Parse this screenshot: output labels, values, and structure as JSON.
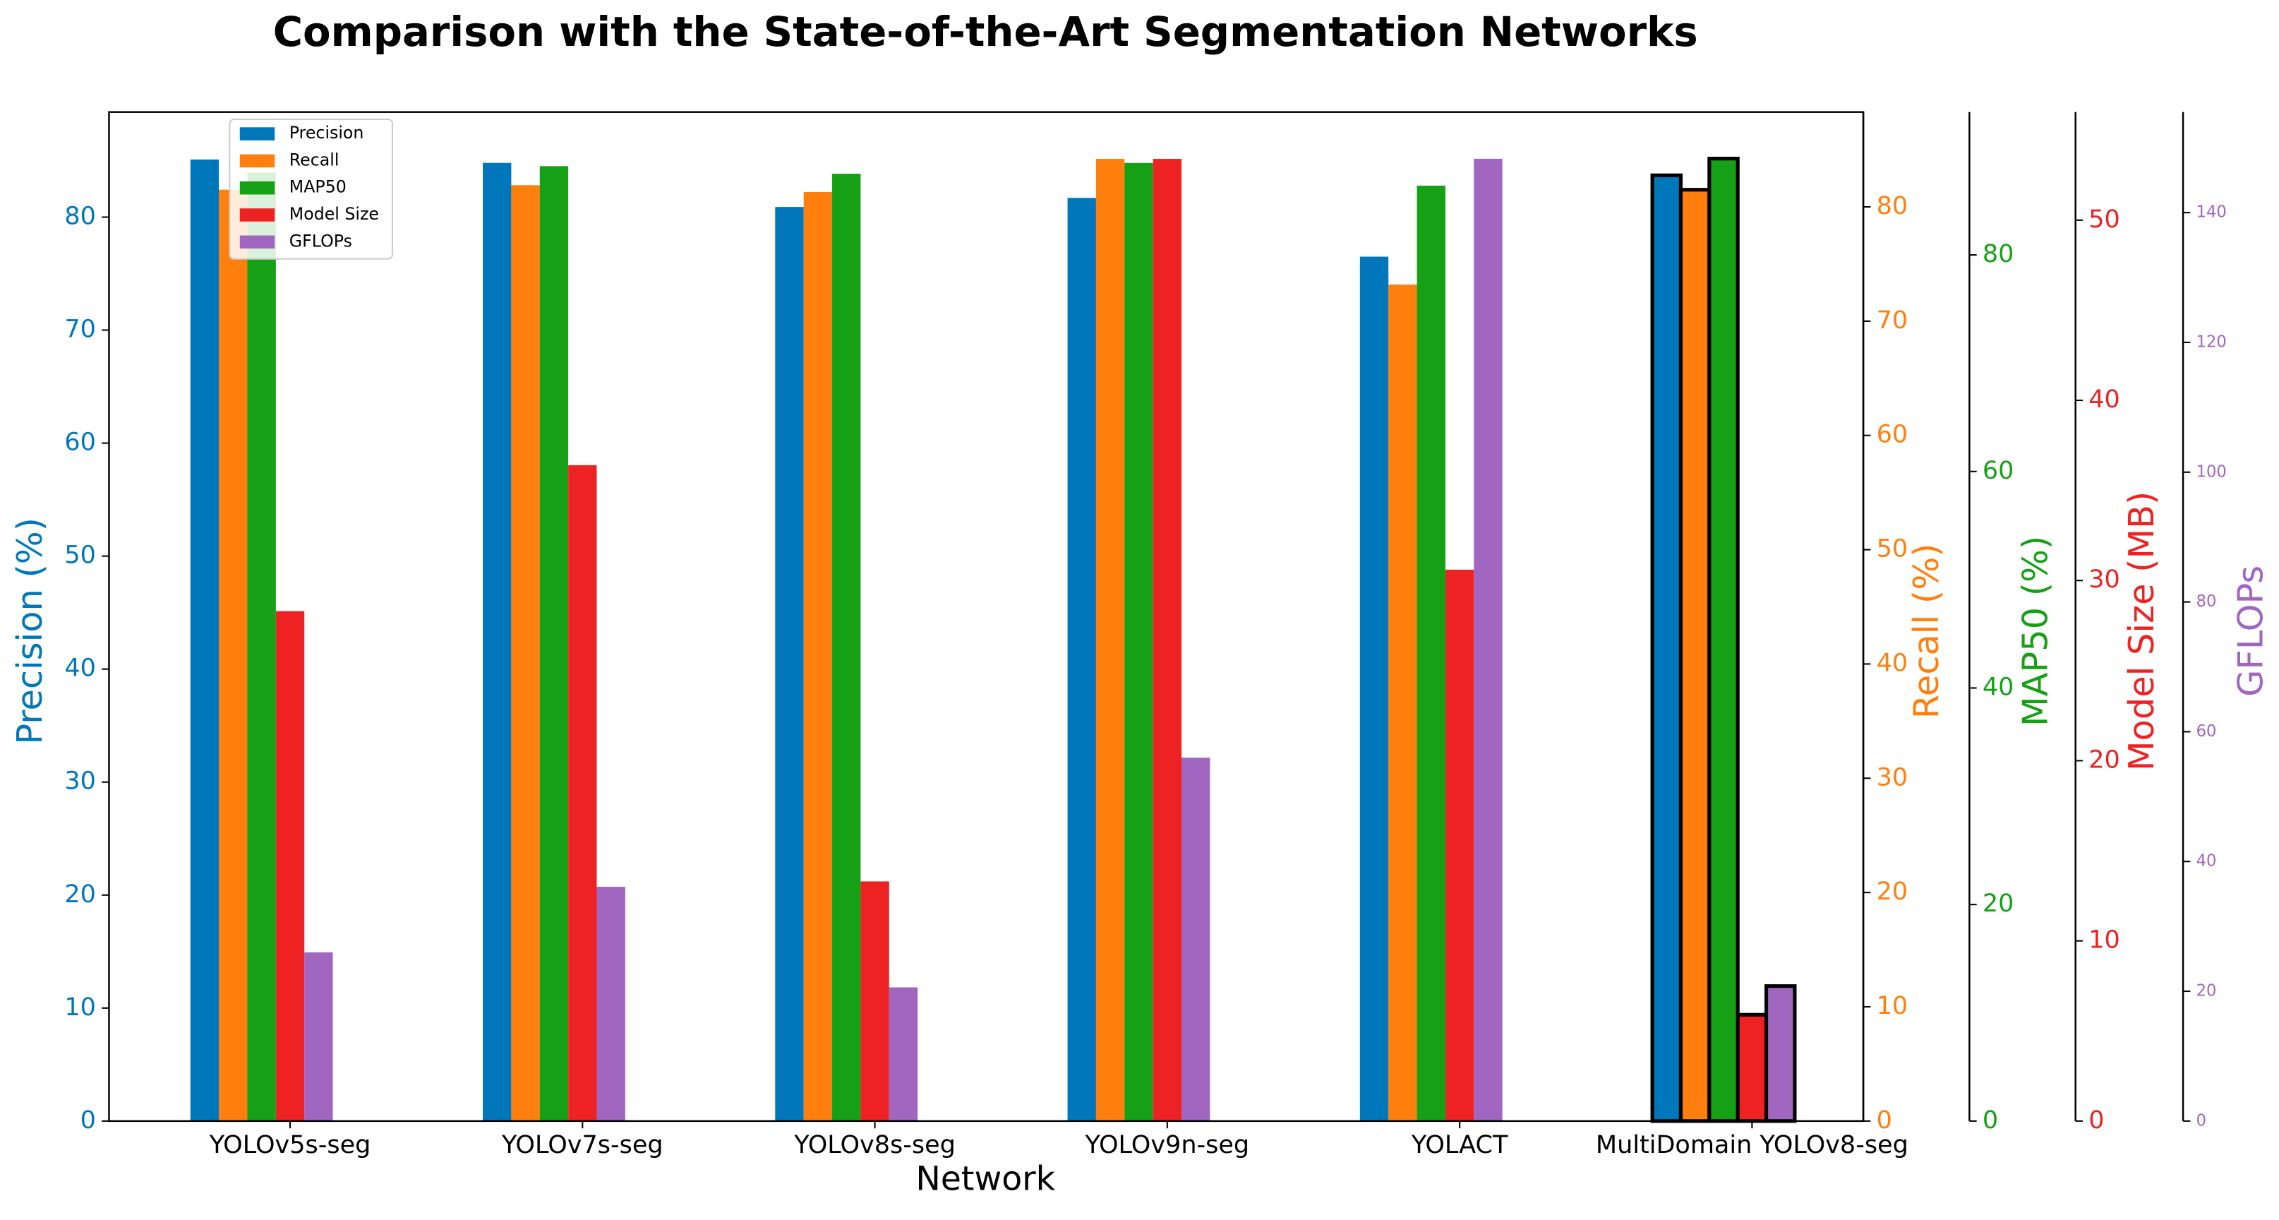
{
  "chart_data": {
    "type": "bar",
    "title": "Comparison with the State-of-the-Art Segmentation Networks",
    "x_label": "Network",
    "categories": [
      "YOLOv5s-seg",
      "YOLOv7s-seg",
      "YOLOv8s-seg",
      "YOLOv9n-seg",
      "YOLACT",
      "MultiDomain YOLOv8-seg"
    ],
    "bar_edge_colors": [
      null,
      null,
      null,
      null,
      null,
      "#000000"
    ],
    "series": [
      {
        "name": "Precision",
        "color": "#0077bb",
        "axis": "y",
        "values": [
          85.1,
          84.8,
          80.9,
          81.7,
          76.5,
          83.7
        ]
      },
      {
        "name": "Recall",
        "color": "#ff7f0e",
        "axis": "y2",
        "values": [
          81.5,
          81.9,
          81.3,
          84.2,
          73.2,
          81.5
        ]
      },
      {
        "name": "MAP50",
        "color": "#16a016",
        "axis": "y3",
        "values": [
          87.6,
          88.2,
          87.5,
          88.5,
          86.4,
          88.9
        ]
      },
      {
        "name": "Model Size",
        "color": "#ee2222",
        "axis": "y4",
        "values": [
          28.3,
          36.4,
          13.3,
          53.4,
          30.6,
          5.9
        ]
      },
      {
        "name": "GFLOPs",
        "color": "#a066c0",
        "axis": "y5",
        "values": [
          26.0,
          36.1,
          20.6,
          56.0,
          148.3,
          20.8
        ]
      }
    ],
    "y_label": "Precision (%)",
    "ylim": [
      0,
      89.3
    ],
    "yticks": [
      0,
      10,
      20,
      30,
      40,
      50,
      60,
      70,
      80
    ],
    "y2_label": "Recall (%)",
    "y2lim": [
      0,
      88.3
    ],
    "y2ticks": [
      0,
      10,
      20,
      30,
      40,
      50,
      60,
      70,
      80
    ],
    "y3_label": "MAP50 (%)",
    "y3lim": [
      0,
      93.2
    ],
    "y3ticks": [
      0,
      20,
      40,
      60,
      80
    ],
    "y4_label": "Model Size (MB)",
    "y4lim": [
      0,
      56.0
    ],
    "y4ticks": [
      0,
      10,
      20,
      30,
      40,
      50
    ],
    "y5_label": "GFLOPs",
    "y5lim": [
      0,
      155.5
    ],
    "y5ticks": [
      0,
      20,
      40,
      60,
      80,
      100,
      120,
      140
    ],
    "legend": "upper left"
  }
}
